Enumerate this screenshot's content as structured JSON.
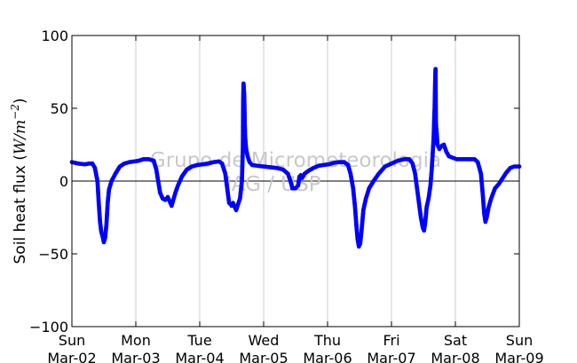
{
  "chart_data": {
    "type": "scatter",
    "ylabel": "Soil heat flux (W/m⁻²)",
    "ylabel_parts": {
      "text": "Soil heat flux (",
      "math": "W/m",
      "sup": "−2",
      "close": ")"
    },
    "ylim": [
      -100,
      100
    ],
    "yticks": [
      -100,
      -50,
      0,
      50,
      100
    ],
    "xlim": [
      0,
      7
    ],
    "xticks": [
      {
        "day": 0,
        "weekday": "Sun",
        "date": "Mar-02"
      },
      {
        "day": 1,
        "weekday": "Mon",
        "date": "Mar-03"
      },
      {
        "day": 2,
        "weekday": "Tue",
        "date": "Mar-04"
      },
      {
        "day": 3,
        "weekday": "Wed",
        "date": "Mar-05"
      },
      {
        "day": 4,
        "weekday": "Thu",
        "date": "Mar-06"
      },
      {
        "day": 5,
        "weekday": "Fri",
        "date": "Mar-07"
      },
      {
        "day": 6,
        "weekday": "Sat",
        "date": "Mar-08"
      },
      {
        "day": 7,
        "weekday": "Sun",
        "date": "Mar-09"
      }
    ],
    "grid": "vertical",
    "zero_line": true,
    "marker_color": "#0000ff",
    "series": [
      {
        "points": [
          [
            0.0,
            13
          ],
          [
            0.1,
            12
          ],
          [
            0.2,
            11.5
          ],
          [
            0.27,
            12
          ],
          [
            0.32,
            12
          ],
          [
            0.36,
            9
          ],
          [
            0.4,
            0
          ],
          [
            0.42,
            -15
          ],
          [
            0.44,
            -28
          ],
          [
            0.46,
            -35
          ],
          [
            0.48,
            -38
          ],
          [
            0.5,
            -42
          ],
          [
            0.52,
            -39
          ],
          [
            0.54,
            -30
          ],
          [
            0.56,
            -15
          ],
          [
            0.58,
            -6
          ],
          [
            0.62,
            0
          ],
          [
            0.68,
            5
          ],
          [
            0.75,
            10
          ],
          [
            0.82,
            12
          ],
          [
            0.9,
            13
          ],
          [
            0.98,
            13.5
          ],
          [
            1.05,
            14
          ],
          [
            1.12,
            15
          ],
          [
            1.2,
            15
          ],
          [
            1.28,
            14
          ],
          [
            1.32,
            8
          ],
          [
            1.35,
            0
          ],
          [
            1.38,
            -8
          ],
          [
            1.42,
            -12
          ],
          [
            1.46,
            -13
          ],
          [
            1.5,
            -11
          ],
          [
            1.54,
            -15
          ],
          [
            1.56,
            -17
          ],
          [
            1.58,
            -14
          ],
          [
            1.62,
            -8
          ],
          [
            1.66,
            -3
          ],
          [
            1.72,
            3
          ],
          [
            1.8,
            8
          ],
          [
            1.88,
            10
          ],
          [
            1.96,
            11
          ],
          [
            2.05,
            11.5
          ],
          [
            2.12,
            12
          ],
          [
            2.22,
            13
          ],
          [
            2.3,
            13.5
          ],
          [
            2.35,
            12
          ],
          [
            2.4,
            5
          ],
          [
            2.43,
            -5
          ],
          [
            2.46,
            -15
          ],
          [
            2.5,
            -17
          ],
          [
            2.52,
            -15
          ],
          [
            2.55,
            -18
          ],
          [
            2.57,
            -20
          ],
          [
            2.6,
            -16
          ],
          [
            2.63,
            -12
          ],
          [
            2.66,
            0
          ],
          [
            2.675,
            23
          ],
          [
            2.68,
            56
          ],
          [
            2.685,
            67
          ],
          [
            2.69,
            64
          ],
          [
            2.695,
            60
          ],
          [
            2.7,
            52
          ],
          [
            2.705,
            40
          ],
          [
            2.71,
            31
          ],
          [
            2.72,
            25
          ],
          [
            2.73,
            21
          ],
          [
            2.75,
            17
          ],
          [
            2.78,
            13
          ],
          [
            2.82,
            11
          ],
          [
            2.9,
            10.5
          ],
          [
            3.0,
            10
          ],
          [
            3.1,
            9.5
          ],
          [
            3.2,
            9
          ],
          [
            3.3,
            8
          ],
          [
            3.38,
            5
          ],
          [
            3.42,
            0
          ],
          [
            3.45,
            -5
          ],
          [
            3.5,
            -5
          ],
          [
            3.54,
            -3
          ],
          [
            3.56,
            3
          ],
          [
            3.58,
            4
          ],
          [
            3.6,
            2
          ],
          [
            3.64,
            5
          ],
          [
            3.7,
            7
          ],
          [
            3.78,
            9
          ],
          [
            3.86,
            10.5
          ],
          [
            3.94,
            11
          ],
          [
            4.02,
            11.5
          ],
          [
            4.1,
            12.5
          ],
          [
            4.18,
            13
          ],
          [
            4.26,
            13
          ],
          [
            4.32,
            11
          ],
          [
            4.36,
            5
          ],
          [
            4.4,
            -5
          ],
          [
            4.43,
            -18
          ],
          [
            4.45,
            -30
          ],
          [
            4.47,
            -40
          ],
          [
            4.49,
            -45
          ],
          [
            4.51,
            -43
          ],
          [
            4.53,
            -35
          ],
          [
            4.56,
            -20
          ],
          [
            4.6,
            -12
          ],
          [
            4.65,
            -5
          ],
          [
            4.72,
            0
          ],
          [
            4.8,
            5
          ],
          [
            4.9,
            10
          ],
          [
            5.0,
            12
          ],
          [
            5.1,
            14
          ],
          [
            5.2,
            15
          ],
          [
            5.28,
            15
          ],
          [
            5.33,
            12
          ],
          [
            5.37,
            5
          ],
          [
            5.4,
            -5
          ],
          [
            5.43,
            -15
          ],
          [
            5.46,
            -25
          ],
          [
            5.49,
            -32
          ],
          [
            5.51,
            -34
          ],
          [
            5.53,
            -28
          ],
          [
            5.55,
            -18
          ],
          [
            5.58,
            -12
          ],
          [
            5.61,
            -3
          ],
          [
            5.63,
            8
          ],
          [
            5.66,
            30
          ],
          [
            5.67,
            45
          ],
          [
            5.675,
            50
          ],
          [
            5.68,
            62
          ],
          [
            5.685,
            72
          ],
          [
            5.69,
            77
          ],
          [
            5.695,
            42
          ],
          [
            5.7,
            37
          ],
          [
            5.71,
            32
          ],
          [
            5.72,
            25
          ],
          [
            5.75,
            22
          ],
          [
            5.78,
            24
          ],
          [
            5.82,
            25
          ],
          [
            5.86,
            20
          ],
          [
            5.9,
            17
          ],
          [
            5.96,
            16
          ],
          [
            6.02,
            15
          ],
          [
            6.1,
            15
          ],
          [
            6.2,
            15
          ],
          [
            6.3,
            15
          ],
          [
            6.35,
            13
          ],
          [
            6.4,
            5
          ],
          [
            6.43,
            -10
          ],
          [
            6.45,
            -22
          ],
          [
            6.47,
            -28
          ],
          [
            6.49,
            -25
          ],
          [
            6.52,
            -18
          ],
          [
            6.56,
            -12
          ],
          [
            6.62,
            -5
          ],
          [
            6.68,
            -2
          ],
          [
            6.74,
            2
          ],
          [
            6.8,
            6
          ],
          [
            6.86,
            9
          ],
          [
            6.92,
            10
          ],
          [
            7.0,
            10
          ]
        ]
      }
    ]
  },
  "watermark": {
    "line1": "Grupo de Micrometeorologia",
    "line2": "IAG / USP"
  }
}
